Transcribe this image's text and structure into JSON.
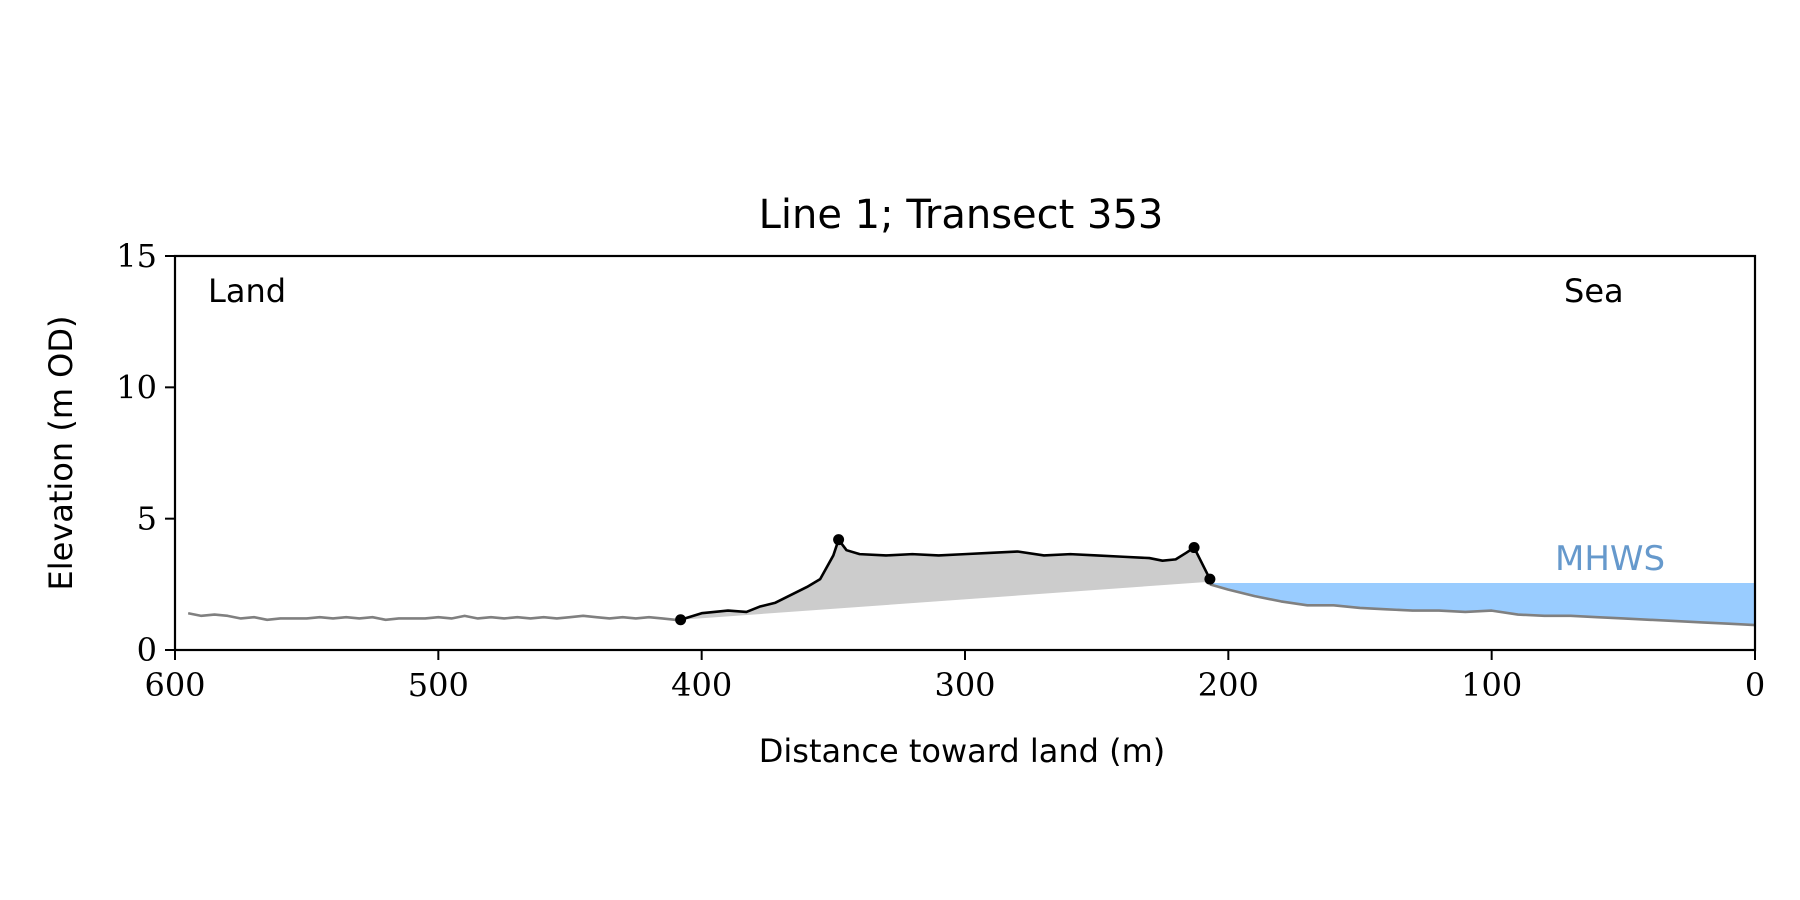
{
  "chart_data": {
    "type": "line",
    "title": "Line 1; Transect 353",
    "xlabel": "Distance toward land (m)",
    "ylabel": "Elevation (m OD)",
    "xlim": [
      600,
      0
    ],
    "ylim": [
      0,
      15
    ],
    "x_ticks": [
      600,
      500,
      400,
      300,
      200,
      100,
      0
    ],
    "y_ticks": [
      0,
      5,
      10,
      15
    ],
    "grid": false,
    "annotations": {
      "land": "Land",
      "sea": "Sea",
      "mhws_label": "MHWS"
    },
    "mhws_level": 2.55,
    "mhws_x_range": [
      207,
      0
    ],
    "colors": {
      "background_profile": "#808080",
      "dune_profile": "#000000",
      "dune_fill": "#cccccc",
      "mhws_fill": "#99ccff",
      "mhws_text": "#6699cc"
    },
    "series": [
      {
        "x": [
          595,
          590,
          585,
          580,
          575,
          570,
          565,
          560,
          555,
          550,
          545,
          540,
          535,
          530,
          525,
          520,
          515,
          510,
          505,
          500,
          495,
          490,
          485,
          480,
          475,
          470,
          465,
          460,
          455,
          450,
          445,
          440,
          435,
          430,
          425,
          420,
          415,
          410
        ],
        "y": [
          1.4,
          1.3,
          1.35,
          1.3,
          1.2,
          1.25,
          1.15,
          1.2,
          1.2,
          1.2,
          1.25,
          1.2,
          1.25,
          1.2,
          1.25,
          1.15,
          1.2,
          1.2,
          1.2,
          1.25,
          1.2,
          1.3,
          1.2,
          1.25,
          1.2,
          1.25,
          1.2,
          1.25,
          1.2,
          1.25,
          1.3,
          1.25,
          1.2,
          1.25,
          1.2,
          1.25,
          1.2,
          1.15
        ]
      },
      {
        "x": [
          408,
          400,
          390,
          383,
          378,
          372,
          366,
          360,
          355,
          350,
          348,
          345,
          340,
          330,
          320,
          310,
          300,
          290,
          280,
          270,
          260,
          250,
          240,
          230,
          225,
          220,
          216,
          213,
          210,
          207
        ],
        "y": [
          1.15,
          1.4,
          1.5,
          1.45,
          1.65,
          1.8,
          2.1,
          2.4,
          2.7,
          3.6,
          4.2,
          3.8,
          3.65,
          3.6,
          3.65,
          3.6,
          3.65,
          3.7,
          3.75,
          3.6,
          3.65,
          3.6,
          3.55,
          3.5,
          3.4,
          3.45,
          3.7,
          3.9,
          3.3,
          2.7
        ]
      },
      {
        "x": [
          207,
          200,
          190,
          180,
          170,
          160,
          150,
          140,
          130,
          120,
          110,
          100,
          90,
          80,
          70,
          60,
          50,
          40,
          30,
          20,
          10,
          0
        ],
        "y": [
          2.5,
          2.3,
          2.05,
          1.85,
          1.7,
          1.7,
          1.6,
          1.55,
          1.5,
          1.5,
          1.45,
          1.5,
          1.35,
          1.3,
          1.3,
          1.25,
          1.2,
          1.15,
          1.1,
          1.05,
          1.0,
          0.95
        ]
      }
    ],
    "markers": {
      "x": [
        408,
        348,
        213,
        207
      ],
      "y": [
        1.15,
        4.2,
        3.9,
        2.7
      ]
    },
    "dune_fill_baseline": {
      "x": [
        408,
        207
      ],
      "y": [
        1.15,
        2.6
      ]
    }
  }
}
